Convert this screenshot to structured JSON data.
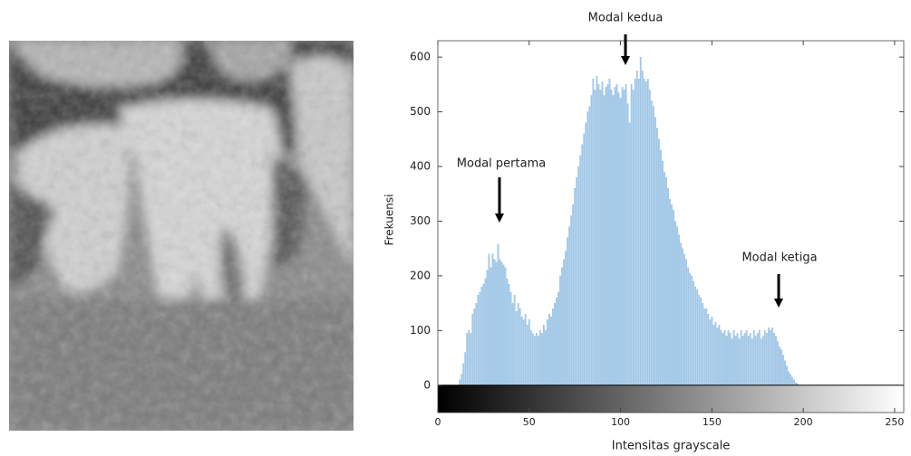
{
  "chart_data": {
    "type": "bar",
    "x_label": "Intensitas grayscale",
    "y_label": "Frekuensi",
    "annotations": [
      "Modal pertama",
      "Modal kedua",
      "Modal ketiga"
    ],
    "color": "#a8cce9",
    "xlim": [
      0,
      255
    ],
    "ylim": [
      -50,
      630
    ],
    "xticks": [
      0,
      50,
      100,
      150,
      200,
      250
    ],
    "yticks": [
      0,
      100,
      200,
      300,
      400,
      500,
      600
    ],
    "x": [
      12,
      13,
      14,
      15,
      16,
      17,
      18,
      19,
      20,
      21,
      22,
      23,
      24,
      25,
      26,
      27,
      28,
      29,
      30,
      31,
      32,
      33,
      34,
      35,
      36,
      37,
      38,
      39,
      40,
      41,
      42,
      43,
      44,
      45,
      46,
      47,
      48,
      49,
      50,
      51,
      52,
      53,
      54,
      55,
      56,
      57,
      58,
      59,
      60,
      61,
      62,
      63,
      64,
      65,
      66,
      67,
      68,
      69,
      70,
      71,
      72,
      73,
      74,
      75,
      76,
      77,
      78,
      79,
      80,
      81,
      82,
      83,
      84,
      85,
      86,
      87,
      88,
      89,
      90,
      91,
      92,
      93,
      94,
      95,
      96,
      97,
      98,
      99,
      100,
      101,
      102,
      103,
      104,
      105,
      106,
      107,
      108,
      109,
      110,
      111,
      112,
      113,
      114,
      115,
      116,
      117,
      118,
      119,
      120,
      121,
      122,
      123,
      124,
      125,
      126,
      127,
      128,
      129,
      130,
      131,
      132,
      133,
      134,
      135,
      136,
      137,
      138,
      139,
      140,
      141,
      142,
      143,
      144,
      145,
      146,
      147,
      148,
      149,
      150,
      151,
      152,
      153,
      154,
      155,
      156,
      157,
      158,
      159,
      160,
      161,
      162,
      163,
      164,
      165,
      166,
      167,
      168,
      169,
      170,
      171,
      172,
      173,
      174,
      175,
      176,
      177,
      178,
      179,
      180,
      181,
      182,
      183,
      184,
      185,
      186,
      187,
      188,
      189,
      190,
      191,
      192,
      193,
      194,
      195,
      196,
      197
    ],
    "values": [
      10,
      20,
      40,
      60,
      95,
      100,
      95,
      130,
      140,
      150,
      165,
      170,
      180,
      185,
      195,
      210,
      240,
      215,
      240,
      230,
      225,
      258,
      230,
      225,
      220,
      215,
      195,
      185,
      170,
      150,
      165,
      135,
      150,
      140,
      125,
      120,
      130,
      110,
      120,
      100,
      95,
      90,
      95,
      90,
      100,
      95,
      110,
      100,
      120,
      130,
      125,
      140,
      150,
      160,
      170,
      200,
      215,
      230,
      245,
      270,
      290,
      310,
      330,
      360,
      380,
      400,
      420,
      440,
      460,
      480,
      500,
      510,
      530,
      560,
      540,
      565,
      550,
      540,
      555,
      530,
      545,
      550,
      560,
      540,
      530,
      545,
      550,
      535,
      525,
      545,
      540,
      550,
      515,
      480,
      550,
      540,
      560,
      575,
      560,
      600,
      575,
      560,
      555,
      560,
      540,
      520,
      510,
      490,
      470,
      450,
      430,
      410,
      390,
      380,
      360,
      340,
      330,
      320,
      300,
      290,
      275,
      260,
      250,
      240,
      230,
      215,
      205,
      200,
      190,
      180,
      175,
      165,
      160,
      150,
      140,
      140,
      130,
      120,
      125,
      110,
      115,
      105,
      110,
      100,
      95,
      100,
      90,
      100,
      95,
      85,
      100,
      90,
      95,
      85,
      100,
      90,
      95,
      100,
      90,
      95,
      85,
      100,
      90,
      95,
      100,
      85,
      90,
      100,
      95,
      105,
      100,
      105,
      95,
      90,
      80,
      70,
      65,
      55,
      45,
      35,
      25,
      20,
      15,
      10,
      5,
      3
    ]
  }
}
